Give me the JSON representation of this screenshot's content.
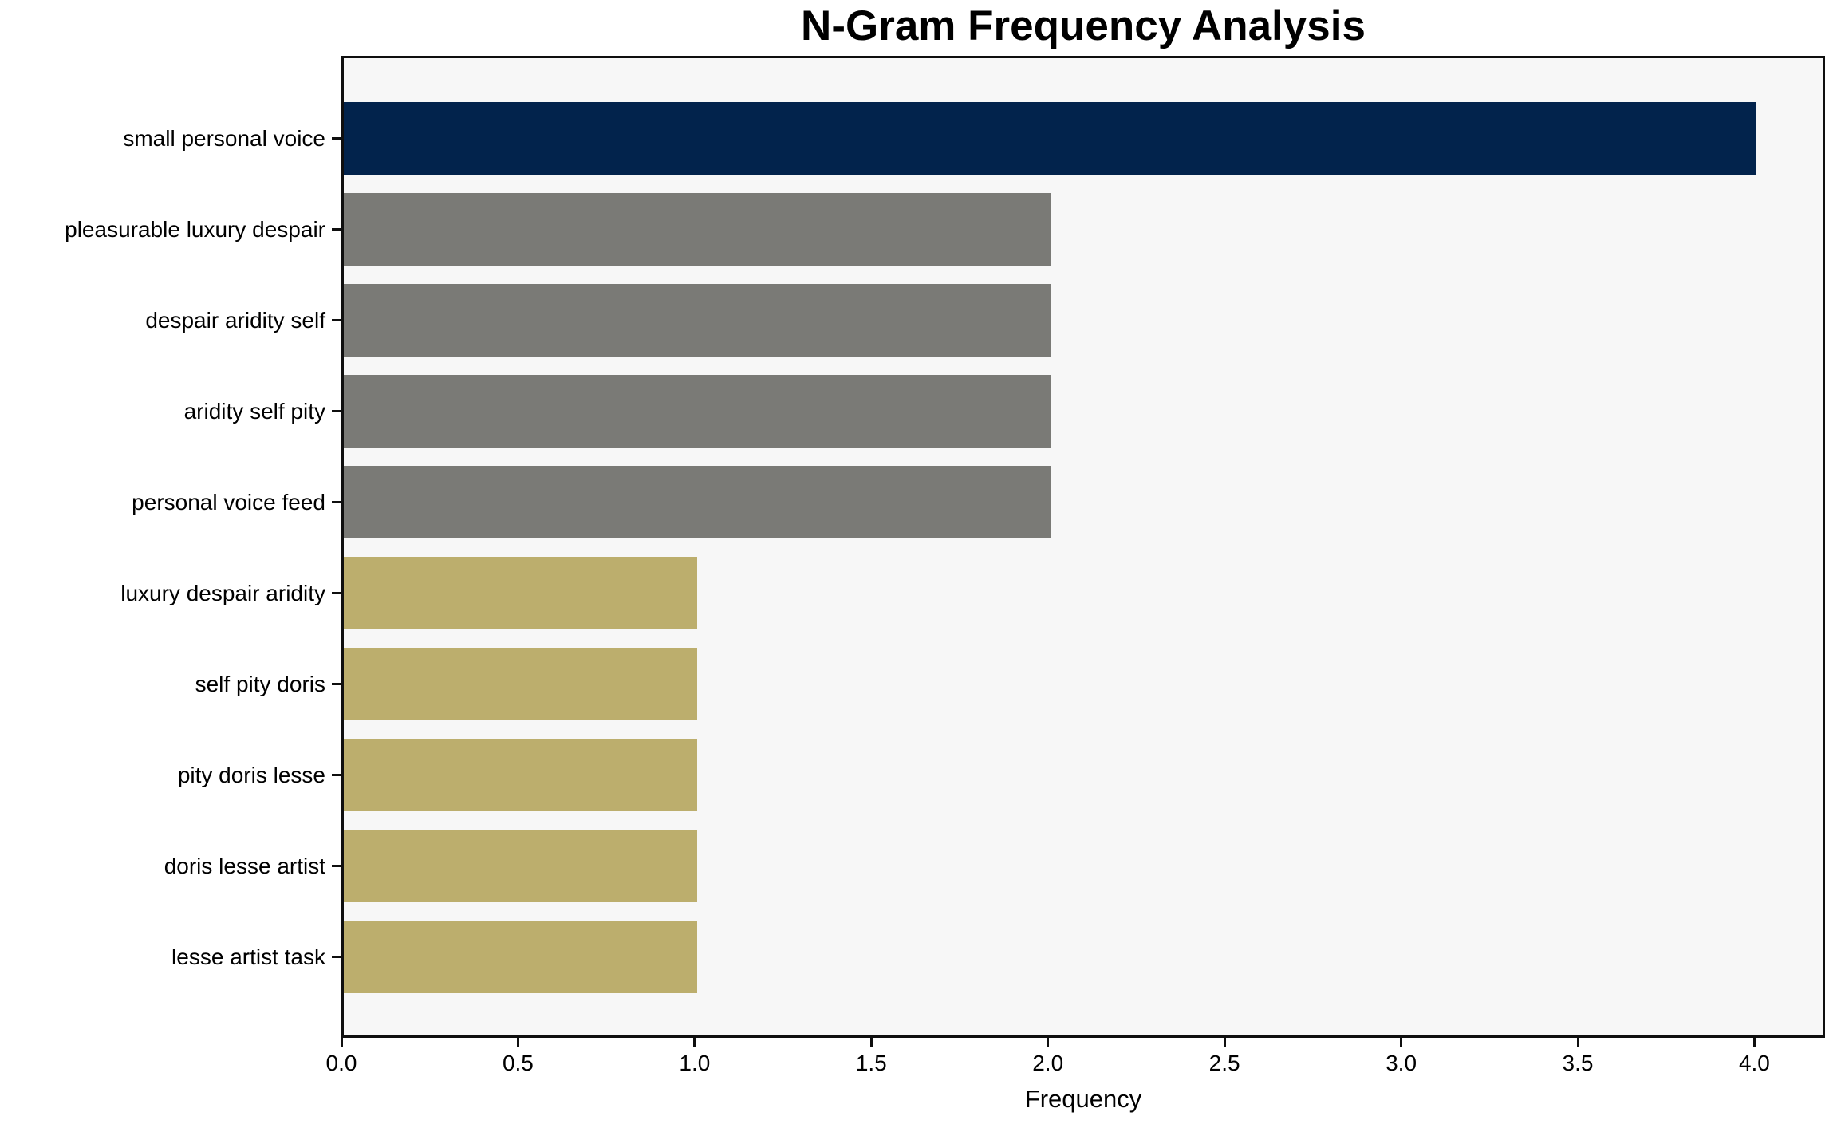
{
  "title": "N-Gram Frequency Analysis",
  "xlabel": "Frequency",
  "chart_data": {
    "type": "bar",
    "orientation": "horizontal",
    "title": "N-Gram Frequency Analysis",
    "xlabel": "Frequency",
    "ylabel": "",
    "categories": [
      "small personal voice",
      "pleasurable luxury despair",
      "despair aridity self",
      "aridity self pity",
      "personal voice feed",
      "luxury despair aridity",
      "self pity doris",
      "pity doris lesse",
      "doris lesse artist",
      "lesse artist task"
    ],
    "values": [
      4,
      2,
      2,
      2,
      2,
      1,
      1,
      1,
      1,
      1
    ],
    "bar_colors": [
      "#02234C",
      "#7A7A76",
      "#7A7A76",
      "#7A7A76",
      "#7A7A76",
      "#BCAE6D",
      "#BCAE6D",
      "#BCAE6D",
      "#BCAE6D",
      "#BCAE6D"
    ],
    "xlim": [
      0,
      4.2
    ],
    "xticks": [
      0.0,
      0.5,
      1.0,
      1.5,
      2.0,
      2.5,
      3.0,
      3.5,
      4.0
    ],
    "xtick_labels": [
      "0.0",
      "0.5",
      "1.0",
      "1.5",
      "2.0",
      "2.5",
      "3.0",
      "3.5",
      "4.0"
    ],
    "grid": false,
    "legend": "none",
    "colors": {
      "top_bar": "#02234C",
      "mid_bars": "#7A7A76",
      "low_bars": "#BCAE6D",
      "plot_background": "#F7F7F7",
      "frame": "#0F0F0F"
    }
  }
}
